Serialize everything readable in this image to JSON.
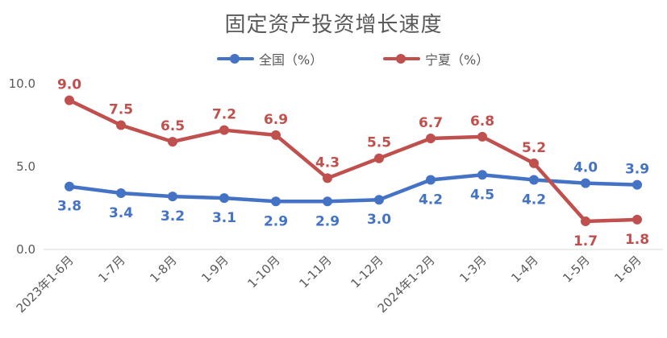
{
  "chart_data": {
    "type": "line",
    "title": "固定资产投资增长速度",
    "categories": [
      "2023年1-6月",
      "1-7月",
      "1-8月",
      "1-9月",
      "1-10月",
      "1-11月",
      "1-12月",
      "2024年1-2月",
      "1-3月",
      "1-4月",
      "1-5月",
      "1-6月"
    ],
    "series": [
      {
        "name": "全国（%）",
        "color": "#4472C4",
        "values": [
          3.8,
          3.4,
          3.2,
          3.1,
          2.9,
          2.9,
          3.0,
          4.2,
          4.5,
          4.2,
          4.0,
          3.9
        ],
        "labels": [
          "3.8",
          "3.4",
          "3.2",
          "3.1",
          "2.9",
          "2.9",
          "3.0",
          "4.2",
          "4.5",
          "4.2",
          "4.0",
          "3.9"
        ]
      },
      {
        "name": "宁夏（%）",
        "color": "#C0504D",
        "values": [
          9.0,
          7.5,
          6.5,
          7.2,
          6.9,
          4.3,
          5.5,
          6.7,
          6.8,
          5.2,
          1.7,
          1.8
        ],
        "labels": [
          "9.0",
          "7.5",
          "6.5",
          "7.2",
          "6.9",
          "4.3",
          "5.5",
          "6.7",
          "6.8",
          "5.2",
          "1.7",
          "1.8"
        ]
      }
    ],
    "yticks": [
      "0.0",
      "5.0",
      "10.0"
    ],
    "ytick_values": [
      0,
      5,
      10
    ],
    "ylim": [
      0,
      10
    ],
    "grid": false,
    "legend_position": "top"
  }
}
